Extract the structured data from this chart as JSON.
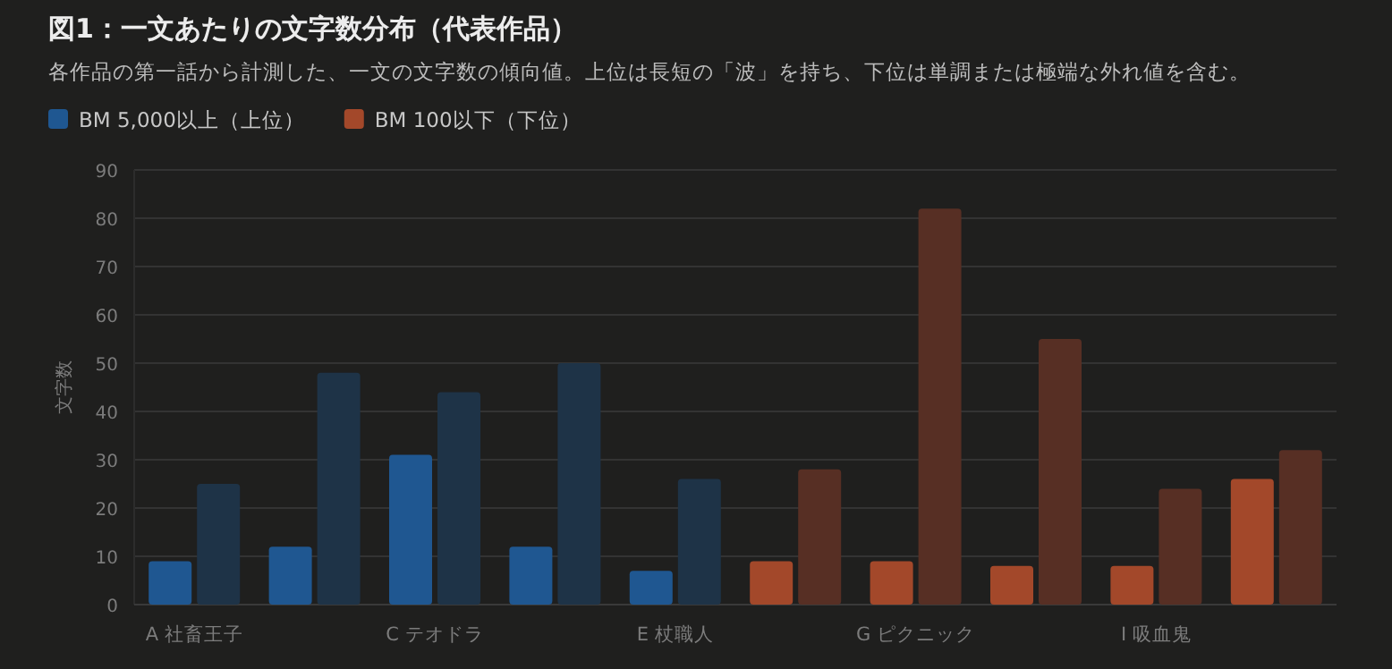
{
  "chart_data": {
    "type": "bar",
    "title": "図1：一文あたりの文字数分布（代表作品）",
    "subtitle": "各作品の第一話から計測した、一文の文字数の傾向値。上位は長短の「波」を持ち、下位は単調または極端な外れ値を含む。",
    "ylabel": "文字数",
    "categories": [
      "A 社畜王子",
      null,
      "C テオドラ",
      null,
      "E 杖職人",
      null,
      "G ピクニック",
      null,
      "I 吸血鬼",
      null
    ],
    "series": [
      {
        "name": "BM 5,000以上（上位）",
        "color": "#1f5791",
        "values": [
          9,
          12,
          31,
          12,
          7,
          null,
          null,
          null,
          null,
          null
        ]
      },
      {
        "color": "#1e3347",
        "values": [
          25,
          48,
          44,
          50,
          26,
          null,
          null,
          null,
          null,
          null
        ]
      },
      {
        "name": "BM 100以下（下位）",
        "color": "#a3482a",
        "values": [
          null,
          null,
          null,
          null,
          null,
          9,
          9,
          8,
          8,
          26
        ]
      },
      {
        "color": "#572f24",
        "values": [
          null,
          null,
          null,
          null,
          null,
          28,
          82,
          55,
          24,
          32
        ]
      }
    ],
    "ylim": [
      0,
      90
    ],
    "yticks": [
      0,
      10,
      20,
      30,
      40,
      50,
      60,
      70,
      80,
      90
    ],
    "grid": "y",
    "legend": "top left"
  }
}
